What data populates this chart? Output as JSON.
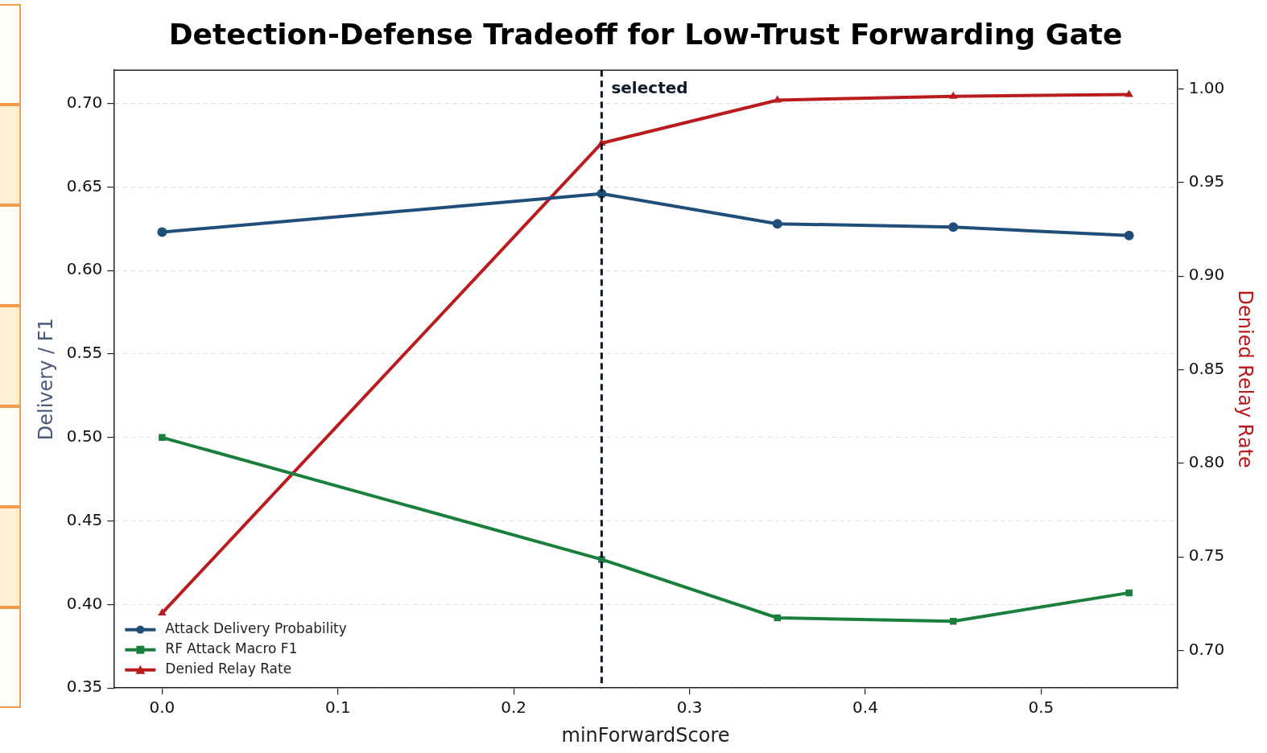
{
  "chart_data": {
    "type": "line",
    "title": "Detection-Defense Tradeoff for Low-Trust Forwarding Gate",
    "xlabel": "minForwardScore",
    "ylabel": "Delivery / F1",
    "y2label": "Denied Relay Rate",
    "x": [
      0,
      0.25,
      0.35,
      0.45,
      0.55
    ],
    "series": [
      {
        "name": "Attack Delivery Probability",
        "color": "#1f4e79",
        "marker": "circle",
        "values": [
          0.623,
          0.646,
          0.628,
          0.626,
          0.621
        ]
      },
      {
        "name": "RF Attack Macro F1",
        "color": "#1a7f3c",
        "marker": "square",
        "values": [
          0.5,
          0.427,
          0.392,
          0.39,
          0.407
        ]
      },
      {
        "name": "Denied Relay Rate",
        "color": "#b91c1c",
        "marker": "triangle",
        "axis": "y2",
        "values": [
          0.72,
          0.971,
          0.994,
          0.996,
          0.997
        ]
      }
    ],
    "xlim": [
      -0.0275,
      0.5775
    ],
    "xticks": [
      {
        "value": 0,
        "label": "0.0"
      },
      0.1,
      0.2,
      0.3,
      0.4,
      0.5
    ],
    "ylim": [
      0.35,
      0.72
    ],
    "yticks": [
      {
        "value": 0.35,
        "label": "0.35"
      },
      {
        "value": 0.4,
        "label": "0.40"
      },
      {
        "value": 0.45,
        "label": "0.45"
      },
      {
        "value": 0.5,
        "label": "0.50"
      },
      {
        "value": 0.55,
        "label": "0.55"
      },
      {
        "value": 0.6,
        "label": "0.60"
      },
      {
        "value": 0.65,
        "label": "0.65"
      },
      {
        "value": 0.7,
        "label": "0.70"
      }
    ],
    "y2lim": [
      0.68,
      1.01
    ],
    "y2ticks": [
      {
        "value": 0.7,
        "label": "0.70"
      },
      {
        "value": 0.75,
        "label": "0.75"
      },
      {
        "value": 0.8,
        "label": "0.80"
      },
      {
        "value": 0.85,
        "label": "0.85"
      },
      {
        "value": 0.9,
        "label": "0.90"
      },
      {
        "value": 0.95,
        "label": "0.95"
      },
      {
        "value": 1.0,
        "label": "1.00"
      }
    ],
    "ref_lines": [
      {
        "axis": "x",
        "value": 0.25,
        "label": "selected",
        "color": "#0f172a",
        "line_style": "dashed"
      }
    ],
    "grid": "y",
    "legend": "bottom left"
  }
}
